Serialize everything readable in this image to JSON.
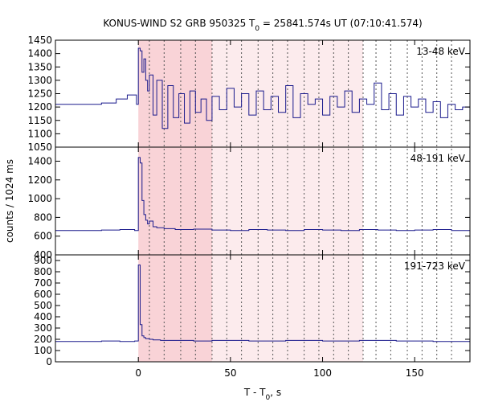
{
  "chart_data": {
    "type": "line",
    "title": {
      "prefix": "KONUS-WIND S2 GRB 950325 T",
      "sub": "0",
      "suffix": " = 25841.574s UT (07:10:41.574)"
    },
    "xlabel": {
      "prefix": "T - T",
      "sub": "0",
      "suffix": ", s"
    },
    "ylabel": "counts / 1024 ms",
    "xlim": [
      -45,
      180
    ],
    "xticks": [
      0,
      50,
      100,
      150
    ],
    "shaded_intervals": [
      {
        "from": 0,
        "to": 40,
        "color": "#f9d3d7"
      },
      {
        "from": 40,
        "to": 122,
        "color": "#fcebed"
      }
    ],
    "dotted_lines_x": [
      6,
      14,
      23,
      31,
      40,
      48,
      56,
      65,
      73,
      81,
      90,
      98,
      106,
      114,
      122,
      129,
      137,
      146,
      154,
      162,
      170
    ],
    "line_color": "#1a1a8c",
    "panels": [
      {
        "label": "13-48 keV",
        "ylim": [
          1050,
          1450
        ],
        "yticks": [
          1050,
          1100,
          1150,
          1200,
          1250,
          1300,
          1350,
          1400,
          1450
        ],
        "t": [
          -45,
          -20,
          -12,
          -6,
          -1,
          0,
          1,
          2,
          3,
          4,
          5,
          6,
          8,
          10,
          13,
          16,
          19,
          22,
          25,
          28,
          31,
          34,
          37,
          40,
          44,
          48,
          52,
          56,
          60,
          64,
          68,
          72,
          76,
          80,
          84,
          88,
          92,
          96,
          100,
          104,
          108,
          112,
          116,
          120,
          124,
          128,
          132,
          136,
          140,
          144,
          148,
          152,
          156,
          160,
          164,
          168,
          172,
          176,
          180
        ],
        "counts": [
          1210,
          1215,
          1230,
          1245,
          1210,
          1420,
          1410,
          1330,
          1380,
          1300,
          1260,
          1320,
          1170,
          1300,
          1120,
          1280,
          1160,
          1250,
          1140,
          1260,
          1180,
          1230,
          1150,
          1240,
          1190,
          1270,
          1200,
          1250,
          1170,
          1260,
          1190,
          1240,
          1180,
          1280,
          1160,
          1250,
          1210,
          1230,
          1170,
          1240,
          1200,
          1260,
          1180,
          1230,
          1210,
          1290,
          1190,
          1250,
          1170,
          1240,
          1200,
          1230,
          1180,
          1220,
          1160,
          1210,
          1190,
          1200,
          1180
        ]
      },
      {
        "label": "48-191 keV",
        "ylim": [
          400,
          1550
        ],
        "yticks": [
          400,
          600,
          800,
          1000,
          1200,
          1400
        ],
        "t": [
          -45,
          -20,
          -10,
          -2,
          0,
          1,
          2,
          3,
          4,
          5,
          6,
          8,
          10,
          14,
          20,
          30,
          40,
          50,
          60,
          70,
          80,
          90,
          100,
          110,
          120,
          130,
          140,
          150,
          160,
          170,
          180
        ],
        "counts": [
          660,
          665,
          670,
          660,
          1440,
          1380,
          980,
          830,
          770,
          730,
          760,
          700,
          690,
          680,
          670,
          675,
          665,
          660,
          670,
          665,
          660,
          670,
          665,
          660,
          670,
          665,
          660,
          665,
          670,
          660,
          665
        ]
      },
      {
        "label": "191-723 keV",
        "ylim": [
          0,
          950
        ],
        "yticks": [
          0,
          100,
          200,
          300,
          400,
          500,
          600,
          700,
          800,
          900
        ],
        "t": [
          -45,
          -20,
          -10,
          -2,
          0,
          1,
          2,
          3,
          4,
          6,
          8,
          12,
          20,
          30,
          40,
          60,
          80,
          100,
          120,
          140,
          160,
          180
        ],
        "counts": [
          180,
          185,
          180,
          185,
          860,
          330,
          230,
          215,
          205,
          200,
          195,
          190,
          190,
          185,
          190,
          185,
          190,
          185,
          190,
          185,
          180,
          185
        ]
      }
    ]
  }
}
